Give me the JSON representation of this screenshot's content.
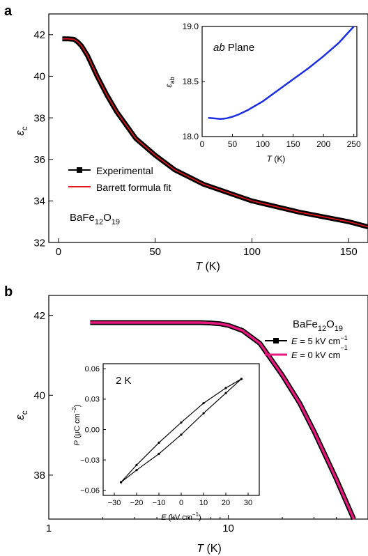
{
  "panels": [
    {
      "letter": "a",
      "ylabel_main": "ε",
      "ylabel_sub": "c",
      "xlabel_italic": "T",
      "xlabel_rest": " (K)",
      "compound": {
        "base": "BaFe",
        "sub1": "12",
        "mid": "O",
        "sub2": "19"
      }
    },
    {
      "letter": "b",
      "ylabel_main": "ε",
      "ylabel_sub": "c",
      "xlabel_italic": "T",
      "xlabel_rest": " (K)",
      "compound": {
        "base": "BaFe",
        "sub1": "12",
        "mid": "O",
        "sub2": "19"
      }
    }
  ],
  "colors": {
    "experimental": "#000000",
    "fit": "#e8161b",
    "inset_line": "#1a2ee0",
    "e0": "#e8177f"
  },
  "chart_data": [
    {
      "id": "a-main",
      "type": "line",
      "xlabel": "T (K)",
      "ylabel": "εc",
      "xlim": [
        -5,
        160
      ],
      "ylim": [
        32,
        43
      ],
      "xticks": [
        "0",
        "50",
        "100",
        "150"
      ],
      "yticks": [
        "32",
        "34",
        "36",
        "38",
        "40",
        "42"
      ],
      "legend": "left",
      "series": [
        {
          "name": "Experimental",
          "x": [
            2,
            5,
            8,
            10,
            12,
            15,
            20,
            25,
            30,
            40,
            50,
            60,
            75,
            100,
            125,
            150,
            160
          ],
          "y": [
            41.8,
            41.8,
            41.78,
            41.65,
            41.45,
            41.0,
            40.0,
            39.1,
            38.3,
            37.0,
            36.2,
            35.5,
            34.8,
            34.0,
            33.45,
            33.0,
            32.75
          ]
        },
        {
          "name": "Barrett formula fit",
          "x": [
            2,
            5,
            8,
            10,
            12,
            15,
            20,
            25,
            30,
            40,
            50,
            60,
            75,
            100,
            125,
            150,
            160
          ],
          "y": [
            41.8,
            41.8,
            41.78,
            41.65,
            41.45,
            41.0,
            40.0,
            39.1,
            38.3,
            37.0,
            36.2,
            35.5,
            34.8,
            34.0,
            33.45,
            33.0,
            32.75
          ]
        }
      ]
    },
    {
      "id": "a-inset",
      "type": "line",
      "title_italic": "ab",
      "title_rest": " Plane",
      "xlabel": "T (K)",
      "ylabel": "εab",
      "xlim": [
        0,
        255
      ],
      "ylim": [
        18.0,
        19.0
      ],
      "xticks": [
        "0",
        "50",
        "100",
        "150",
        "200",
        "250"
      ],
      "yticks": [
        "18.0",
        "18.5",
        "19.0"
      ],
      "series": [
        {
          "x": [
            10,
            20,
            30,
            40,
            50,
            60,
            75,
            100,
            125,
            150,
            175,
            200,
            225,
            250
          ],
          "y": [
            18.17,
            18.165,
            18.16,
            18.165,
            18.18,
            18.2,
            18.24,
            18.32,
            18.42,
            18.52,
            18.62,
            18.73,
            18.85,
            19.0
          ]
        }
      ]
    },
    {
      "id": "b-main",
      "type": "line",
      "xscale": "log",
      "xlabel": "T (K)",
      "ylabel": "εc",
      "xlim": [
        1,
        60
      ],
      "ylim": [
        36.9,
        42.5
      ],
      "xticks": [
        "1",
        "10"
      ],
      "yticks": [
        "38",
        "40",
        "42"
      ],
      "legend": "right",
      "series": [
        {
          "name": "E = 5 kV cm−1",
          "x": [
            1.7,
            3,
            5,
            7,
            8,
            9,
            10,
            12,
            15,
            20,
            25,
            30,
            40,
            50
          ],
          "y": [
            41.82,
            41.82,
            41.82,
            41.82,
            41.81,
            41.79,
            41.75,
            41.62,
            41.3,
            40.5,
            39.8,
            39.1,
            37.9,
            36.9
          ]
        },
        {
          "name": "E = 0 kV cm−1",
          "x": [
            1.7,
            3,
            5,
            7,
            8,
            9,
            10,
            12,
            15,
            20,
            25,
            30,
            40,
            50
          ],
          "y": [
            41.82,
            41.82,
            41.82,
            41.82,
            41.81,
            41.79,
            41.75,
            41.62,
            41.3,
            40.5,
            39.8,
            39.1,
            37.9,
            36.9
          ]
        }
      ]
    },
    {
      "id": "b-inset",
      "type": "line",
      "title": "2 K",
      "xlabel": "E (kV cm−1)",
      "ylabel": "P (μC cm−2)",
      "xlim": [
        -35,
        35
      ],
      "ylim": [
        -0.065,
        0.065
      ],
      "xticks": [
        "−30",
        "−20",
        "−10",
        "0",
        "10",
        "20",
        "30"
      ],
      "yticks": [
        "−0.06",
        "−0.03",
        "0.00",
        "0.03",
        "0.06"
      ],
      "series": [
        {
          "x": [
            -27,
            -20,
            -10,
            0,
            10,
            20,
            27
          ],
          "y": [
            -0.052,
            -0.035,
            -0.013,
            0.007,
            0.026,
            0.041,
            0.05
          ]
        },
        {
          "x": [
            27,
            20,
            10,
            0,
            -10,
            -20,
            -27
          ],
          "y": [
            0.05,
            0.036,
            0.016,
            -0.005,
            -0.024,
            -0.04,
            -0.052
          ]
        }
      ]
    }
  ],
  "labels": {
    "legend_a_exp": "Experimental",
    "legend_a_fit": "Barrett formula fit",
    "legend_b_5_pre": "E",
    "legend_b_5_post": " = 5 kV cm",
    "legend_b_0_pre": "E",
    "legend_b_0_post": " = 0 kV cm",
    "legend_b_sup": "−1",
    "inset_a_ylabel_main": "ε",
    "inset_a_ylabel_sub": "ab",
    "inset_a_xlabel_italic": "T",
    "inset_a_xlabel_rest": " (K)",
    "inset_b_ylabel_italic": "P",
    "inset_b_ylabel_rest": " (μC cm",
    "inset_b_ylabel_sup": "−2",
    "inset_b_ylabel_close": ")",
    "inset_b_xlabel_italic": "E",
    "inset_b_xlabel_rest": " (kV cm",
    "inset_b_xlabel_sup": "−1",
    "inset_b_xlabel_close": ")"
  }
}
